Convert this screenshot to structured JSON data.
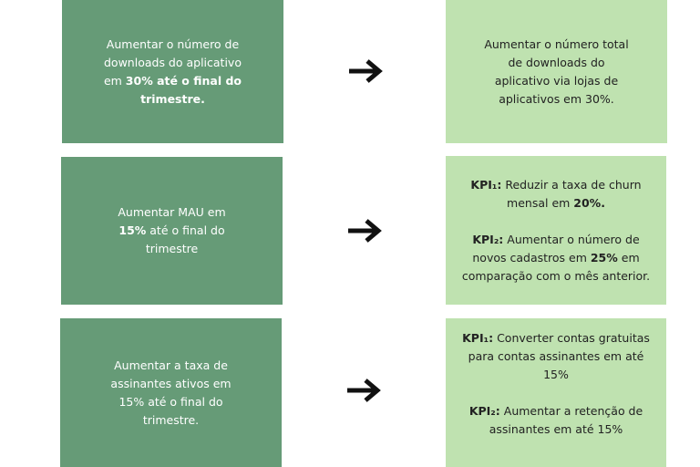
{
  "rows": [
    {
      "objective": {
        "a": "Aumentar o número de downloads do aplicativo em ",
        "b": "30% até o final do trimestre."
      },
      "kpi": {
        "text": "Aumentar o número total de downloads do aplicativo via lojas de aplicativos em 30%."
      }
    },
    {
      "objective": {
        "a": "Aumentar MAU em ",
        "b": "15%",
        "c": " até o final do trimestre"
      },
      "kpi1": {
        "label": "KPI₁:",
        "a": " Reduzir a taxa de churn mensal em ",
        "b": "20%."
      },
      "kpi2": {
        "label": "KPI₂:",
        "a": " Aumentar o número de novos cadastros em ",
        "b": "25%",
        "c": " em comparação com o mês anterior."
      }
    },
    {
      "objective": {
        "a": "Aumentar a taxa de assinantes ativos em 15% até o final do trimestre."
      },
      "kpi1": {
        "label": "KPI₁:",
        "a": " Converter contas gratuitas para contas assinantes em até 15%"
      },
      "kpi2": {
        "label": "KPI₂:",
        "a": " Aumentar a retenção de assinantes em até 15%"
      }
    }
  ],
  "icons": {
    "arrow": "arrow-right-icon"
  },
  "colors": {
    "objective_bg": "#669b77",
    "kpi_bg": "#bfe2b0"
  }
}
